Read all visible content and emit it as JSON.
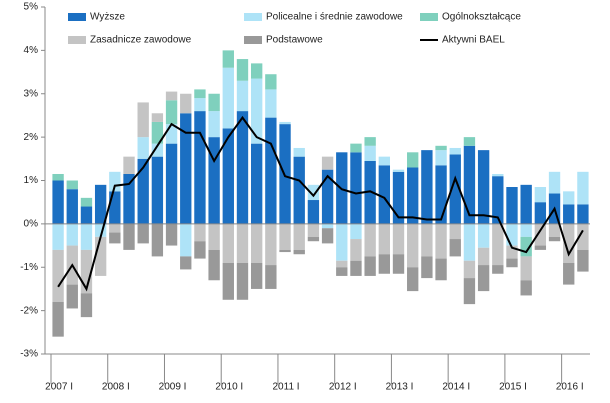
{
  "chart_data": {
    "type": "bar",
    "categories": [
      "2007 I",
      null,
      null,
      null,
      "2008 I",
      null,
      null,
      null,
      "2009 I",
      null,
      null,
      null,
      "2010 I",
      null,
      null,
      null,
      "2011 I",
      null,
      null,
      null,
      "2012 I",
      null,
      null,
      null,
      "2013 I",
      null,
      null,
      null,
      "2014 I",
      null,
      null,
      null,
      "2015 I",
      null,
      null,
      null,
      "2016 I",
      null
    ],
    "series": [
      {
        "name": "Wyższe",
        "color": "#1b6fc2",
        "values": [
          1.0,
          0.8,
          0.4,
          0.9,
          0.75,
          1.15,
          1.5,
          1.55,
          1.85,
          2.55,
          2.6,
          2.0,
          2.2,
          2.6,
          1.85,
          2.45,
          2.3,
          1.55,
          0.55,
          1.25,
          1.65,
          1.65,
          1.45,
          1.35,
          1.2,
          1.3,
          1.7,
          1.35,
          1.6,
          1.8,
          1.7,
          1.1,
          0.85,
          0.9,
          0.5,
          0.7,
          0.45,
          0.45
        ]
      },
      {
        "name": "Policealne i średnie zawodowe",
        "color": "#aee3f7",
        "values": [
          -0.6,
          -0.5,
          -0.6,
          -0.3,
          0.45,
          0.0,
          0.5,
          0.3,
          0.45,
          -0.75,
          0.3,
          0.6,
          1.4,
          0.7,
          1.5,
          0.65,
          0.05,
          0.2,
          0.35,
          -0.1,
          -0.85,
          -0.35,
          0.35,
          0.2,
          0.05,
          0.0,
          0.0,
          0.35,
          0.15,
          -0.85,
          -0.55,
          0.05,
          -0.5,
          -0.3,
          0.35,
          0.5,
          0.3,
          0.75
        ]
      },
      {
        "name": "Ogólnokształcące",
        "color": "#7fd0bd",
        "values": [
          0.15,
          0.2,
          0.2,
          0.0,
          0.0,
          0.0,
          0.0,
          0.5,
          0.55,
          0.0,
          0.2,
          0.4,
          0.4,
          0.5,
          0.35,
          0.35,
          0.0,
          0.0,
          0.0,
          0.0,
          0.0,
          0.2,
          0.2,
          0.0,
          0.0,
          0.35,
          0.0,
          0.1,
          0.0,
          0.2,
          0.0,
          0.0,
          0.0,
          -0.45,
          0.0,
          0.0,
          0.0,
          0.0
        ]
      },
      {
        "name": "Zasadnicze zawodowe",
        "color": "#c4c4c4",
        "values": [
          -1.2,
          -0.9,
          -1.0,
          -0.9,
          -0.2,
          0.4,
          0.8,
          0.2,
          0.2,
          0.45,
          -0.4,
          -0.6,
          -0.9,
          -0.9,
          -0.9,
          -0.95,
          -0.6,
          -0.6,
          -0.3,
          0.3,
          -0.15,
          -0.5,
          -0.75,
          -0.7,
          -0.7,
          -1.0,
          -0.75,
          -0.8,
          -0.35,
          -0.4,
          -0.4,
          -0.95,
          -0.3,
          -0.55,
          -0.5,
          -0.3,
          -0.9,
          -0.6
        ]
      },
      {
        "name": "Podstawowe",
        "color": "#999999",
        "values": [
          -0.8,
          -0.55,
          -0.55,
          0.0,
          -0.25,
          -0.6,
          -0.45,
          -0.75,
          -0.5,
          -0.3,
          -0.4,
          -0.7,
          -0.85,
          -0.85,
          -0.6,
          -0.55,
          -0.05,
          -0.1,
          -0.1,
          -0.35,
          -0.2,
          -0.35,
          -0.45,
          -0.45,
          -0.45,
          -0.55,
          -0.5,
          -0.5,
          -0.4,
          -0.6,
          -0.6,
          -0.2,
          -0.2,
          -0.35,
          -0.1,
          -0.1,
          -0.5,
          -0.5
        ]
      },
      {
        "name": "Aktywni BAEL",
        "color": "#000000",
        "type": "line",
        "values": [
          -1.45,
          -0.95,
          -1.5,
          -0.3,
          0.88,
          0.92,
          1.3,
          1.8,
          2.3,
          2.1,
          2.1,
          1.45,
          2.0,
          2.45,
          2.0,
          1.85,
          1.1,
          1.0,
          0.65,
          1.1,
          0.8,
          0.7,
          0.75,
          0.6,
          0.15,
          0.15,
          0.1,
          0.1,
          1.05,
          0.2,
          0.2,
          0.15,
          -0.55,
          -0.65,
          -0.15,
          0.35,
          -0.7,
          -0.15
        ]
      }
    ],
    "ylim": [
      -3,
      5
    ],
    "yticks": [
      {
        "value": -3,
        "label": "-3%"
      },
      {
        "value": -2,
        "label": "-2%"
      },
      {
        "value": -1,
        "label": "-1%"
      },
      {
        "value": 0,
        "label": "0%"
      },
      {
        "value": 1,
        "label": "1%"
      },
      {
        "value": 2,
        "label": "2%"
      },
      {
        "value": 3,
        "label": "3%"
      },
      {
        "value": 4,
        "label": "4%"
      },
      {
        "value": 5,
        "label": "5%"
      }
    ]
  }
}
